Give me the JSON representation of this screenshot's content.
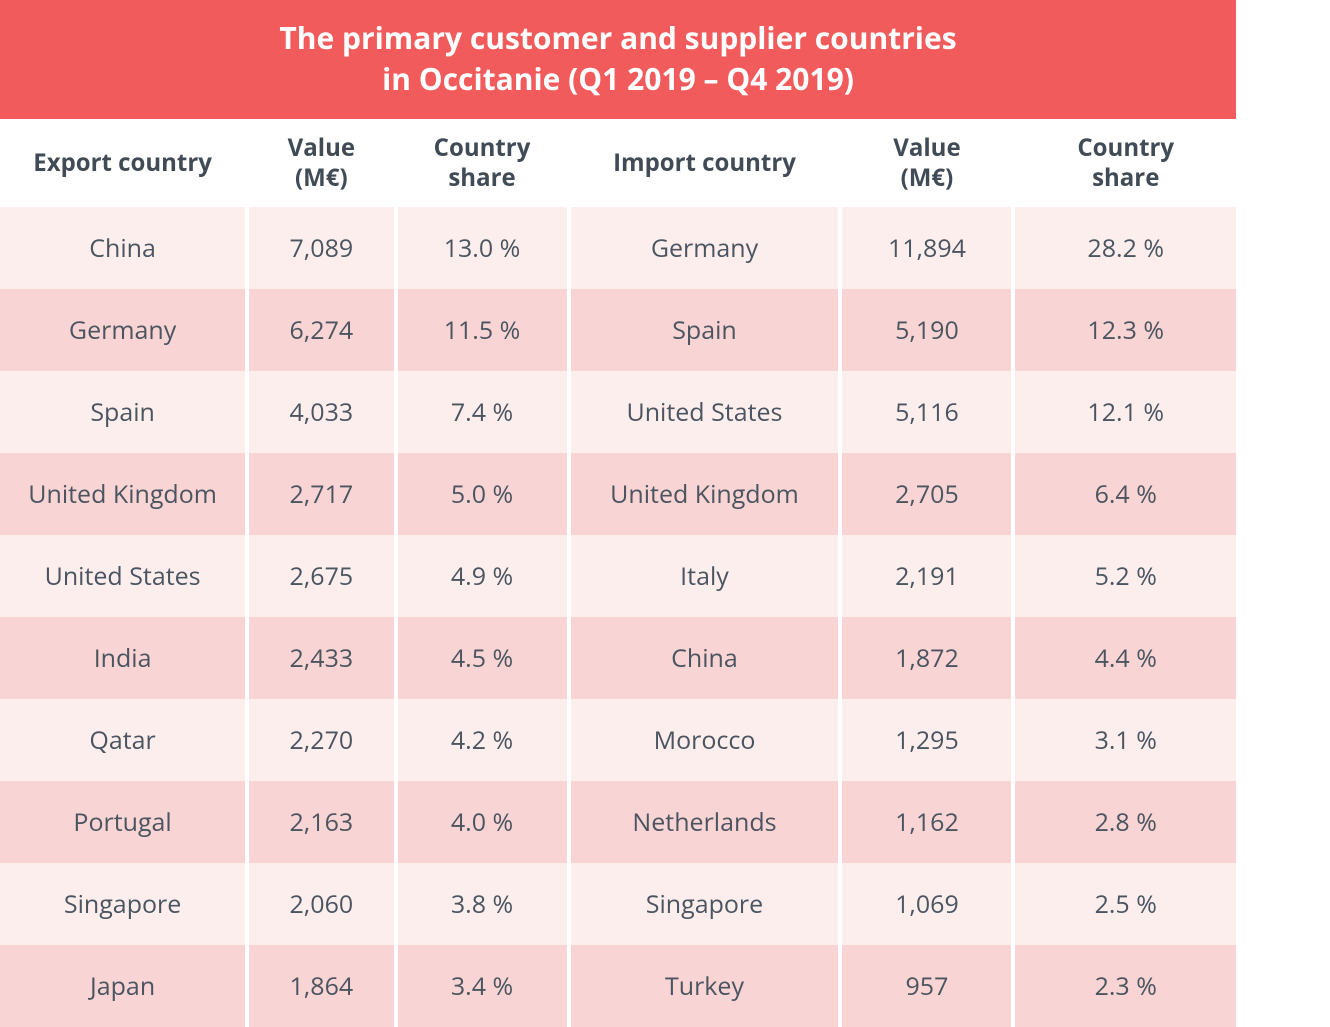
{
  "title": {
    "line1": "The primary customer and supplier countries",
    "line2": "in Occitanie (Q1 2019 – Q4 2019)"
  },
  "table": {
    "type": "table",
    "background_color": "#ffffff",
    "row_colors": {
      "light": "#fdeeee",
      "dark": "#f9d4d4"
    },
    "banner_color": "#f25b5b",
    "banner_text_color": "#ffffff",
    "text_color": "#4a5560",
    "header_text_color": "#414b56",
    "title_fontsize": 30,
    "header_fontsize": 24,
    "cell_fontsize": 25,
    "columns": [
      {
        "key": "export_country",
        "label_line1": "Export country",
        "label_line2": "",
        "width_pct": 20,
        "align": "center"
      },
      {
        "key": "export_value",
        "label_line1": "Value",
        "label_line2": "(M€)",
        "width_pct": 12,
        "align": "center"
      },
      {
        "key": "export_share",
        "label_line1": "Country",
        "label_line2": "share",
        "width_pct": 14,
        "align": "center"
      },
      {
        "key": "import_country",
        "label_line1": "Import country",
        "label_line2": "",
        "width_pct": 22,
        "align": "center"
      },
      {
        "key": "import_value",
        "label_line1": "Value",
        "label_line2": "(M€)",
        "width_pct": 14,
        "align": "center"
      },
      {
        "key": "import_share",
        "label_line1": "Country",
        "label_line2": "share",
        "width_pct": 18,
        "align": "center"
      }
    ],
    "rows": [
      {
        "export_country": "China",
        "export_value": "7,089",
        "export_share": "13.0 %",
        "import_country": "Germany",
        "import_value": "11,894",
        "import_share": "28.2 %"
      },
      {
        "export_country": "Germany",
        "export_value": "6,274",
        "export_share": "11.5 %",
        "import_country": "Spain",
        "import_value": "5,190",
        "import_share": "12.3 %"
      },
      {
        "export_country": "Spain",
        "export_value": "4,033",
        "export_share": "7.4 %",
        "import_country": "United States",
        "import_value": "5,116",
        "import_share": "12.1 %"
      },
      {
        "export_country": "United Kingdom",
        "export_value": "2,717",
        "export_share": "5.0 %",
        "import_country": "United Kingdom",
        "import_value": "2,705",
        "import_share": "6.4 %"
      },
      {
        "export_country": "United States",
        "export_value": "2,675",
        "export_share": "4.9 %",
        "import_country": "Italy",
        "import_value": "2,191",
        "import_share": "5.2 %"
      },
      {
        "export_country": "India",
        "export_value": "2,433",
        "export_share": "4.5 %",
        "import_country": "China",
        "import_value": "1,872",
        "import_share": "4.4 %"
      },
      {
        "export_country": "Qatar",
        "export_value": "2,270",
        "export_share": "4.2 %",
        "import_country": "Morocco",
        "import_value": "1,295",
        "import_share": "3.1 %"
      },
      {
        "export_country": "Portugal",
        "export_value": "2,163",
        "export_share": "4.0 %",
        "import_country": "Netherlands",
        "import_value": "1,162",
        "import_share": "2.8 %"
      },
      {
        "export_country": "Singapore",
        "export_value": "2,060",
        "export_share": "3.8 %",
        "import_country": "Singapore",
        "import_value": "1,069",
        "import_share": "2.5 %"
      },
      {
        "export_country": "Japan",
        "export_value": "1,864",
        "export_share": "3.4 %",
        "import_country": "Turkey",
        "import_value": "957",
        "import_share": "2.3 %"
      }
    ]
  }
}
